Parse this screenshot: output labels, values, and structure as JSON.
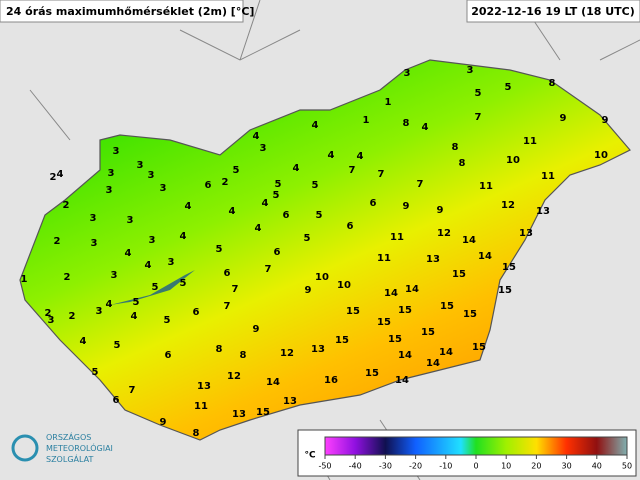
{
  "header": {
    "title": "24 órás maximumhőmérséklet (2m) [°C]",
    "timestamp": "2022-12-16 19 LT (18 UTC)"
  },
  "logo": {
    "lines": [
      "ORSZÁGOS",
      "METEOROLÓGIAI",
      "SZOLGÁLAT"
    ]
  },
  "stations": {
    "values": [
      3,
      3,
      5,
      5,
      8,
      1,
      1,
      8,
      4,
      7,
      9,
      9,
      4,
      4,
      3,
      11,
      10,
      8,
      4,
      4,
      3,
      3,
      10,
      8,
      7,
      7,
      4,
      5,
      2,
      6,
      11,
      4,
      2,
      3,
      3,
      3,
      5,
      5,
      7,
      11,
      3,
      2,
      4,
      5,
      6,
      9,
      9,
      12,
      13,
      4,
      4,
      5,
      6,
      3,
      3,
      6,
      2,
      3,
      4,
      4,
      13,
      11,
      12,
      14,
      3,
      4,
      5,
      6,
      5,
      11,
      13,
      14,
      4,
      3,
      3,
      7,
      6,
      15,
      15,
      1,
      2,
      5,
      10,
      9,
      10,
      7,
      14,
      14,
      15,
      5,
      5,
      4,
      3,
      2,
      2,
      7,
      6,
      5,
      4,
      15,
      15,
      15,
      15,
      15,
      9,
      15,
      4,
      3,
      5,
      8,
      8,
      12,
      13,
      15,
      15,
      14,
      14,
      15,
      6,
      5,
      12,
      16,
      15,
      14,
      14,
      14,
      7,
      13,
      6,
      11,
      13,
      15,
      13,
      9,
      8
    ]
  },
  "colorbar": {
    "unit": "°C",
    "ticks": [
      -50,
      -40,
      -30,
      -20,
      -10,
      0,
      10,
      20,
      30,
      40,
      50
    ]
  }
}
